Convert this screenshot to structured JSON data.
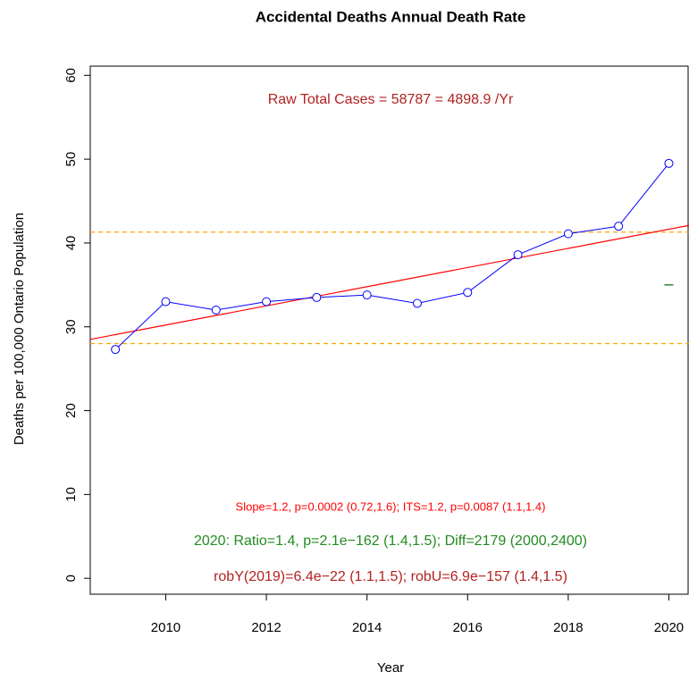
{
  "chart_data": {
    "type": "line",
    "title": "Accidental Deaths Annual Death Rate",
    "x_label": "Year",
    "y_label": "Deaths per 100,000 Ontario Population",
    "x": [
      2009,
      2010,
      2011,
      2012,
      2013,
      2014,
      2015,
      2016,
      2017,
      2018,
      2019,
      2020
    ],
    "series": [
      {
        "color": "#0000ff",
        "values": [
          27.3,
          33.0,
          32.0,
          33.0,
          33.5,
          33.8,
          32.8,
          34.1,
          38.6,
          41.1,
          42.0,
          49.5
        ]
      }
    ],
    "trend": {
      "x": [
        2008.5,
        2020.4
      ],
      "values": [
        28.5,
        42.1
      ],
      "color": "#ff0000"
    },
    "hlines": [
      {
        "value": 41.3,
        "color": "#ffa500"
      },
      {
        "value": 28.0,
        "color": "#ffa500"
      }
    ],
    "marker": {
      "x": 2020,
      "value": 35.0,
      "color": "#006400"
    },
    "xlim": [
      2008.5,
      2020.4
    ],
    "ylim": [
      -1.9,
      61.1
    ],
    "xticks": [
      2010,
      2012,
      2014,
      2016,
      2018,
      2020
    ],
    "yticks": [
      0,
      10,
      20,
      30,
      40,
      50,
      60
    ],
    "annotations": [
      {
        "text": "Raw Total Cases = 58787 = 4898.9 /Yr",
        "color": "#b22222"
      },
      {
        "text": "Slope=1.2, p=0.0002 (0.72,1.6);  ITS=1.2, p=0.0087 (1.1,1.4)",
        "color": "#ff0000"
      },
      {
        "text": "2020:  Ratio=1.4, p=2.1e−162 (1.4,1.5);  Diff=2179 (2000,2400)",
        "color": "#228b22"
      },
      {
        "text": "robY(2019)=6.4e−22 (1.1,1.5); robU=6.9e−157 (1.4,1.5)",
        "color": "#b22222"
      }
    ]
  }
}
